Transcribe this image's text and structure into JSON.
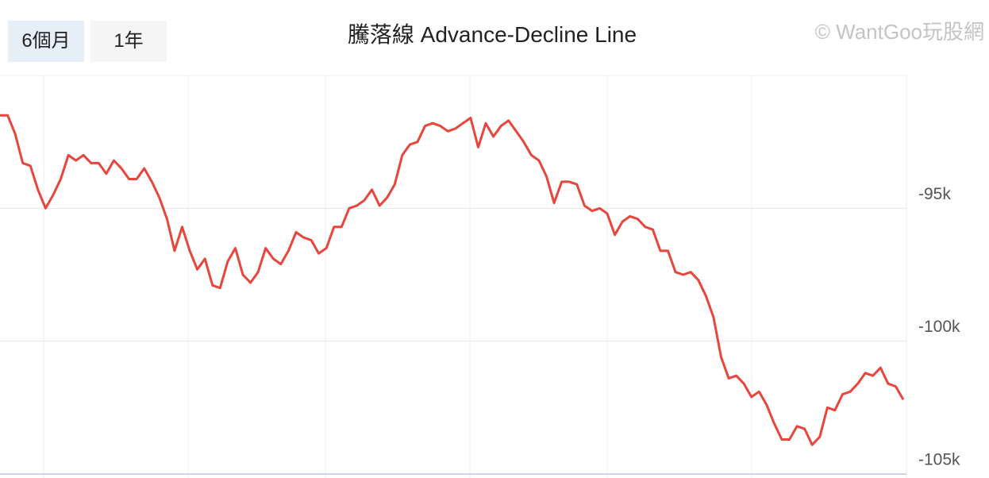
{
  "buttons": [
    "6個月",
    "1年"
  ],
  "watermark": "© WantGoo玩股網",
  "chart_data": {
    "type": "line",
    "title": "騰落線 Advance-Decline Line",
    "color": "#e8453c",
    "grid": true,
    "ylim": [
      -105000,
      -90000
    ],
    "yticks": [
      {
        "value": -105000,
        "label": "-105k"
      },
      {
        "value": -100000,
        "label": "-100k"
      },
      {
        "value": -95000,
        "label": "-95k"
      }
    ],
    "values": [
      -91500,
      -91500,
      -92200,
      -93300,
      -93400,
      -94300,
      -95000,
      -94500,
      -93900,
      -93000,
      -93200,
      -93000,
      -93300,
      -93300,
      -93700,
      -93200,
      -93500,
      -93900,
      -93900,
      -93500,
      -94000,
      -94600,
      -95400,
      -96600,
      -95700,
      -96600,
      -97300,
      -96900,
      -97900,
      -98000,
      -97000,
      -96500,
      -97500,
      -97800,
      -97400,
      -96500,
      -96900,
      -97100,
      -96600,
      -95900,
      -96100,
      -96200,
      -96700,
      -96500,
      -95700,
      -95700,
      -95000,
      -94900,
      -94700,
      -94300,
      -94900,
      -94600,
      -94100,
      -93000,
      -92600,
      -92500,
      -91900,
      -91800,
      -91900,
      -92100,
      -92000,
      -91800,
      -91600,
      -92700,
      -91800,
      -92300,
      -91900,
      -91700,
      -92100,
      -92500,
      -93000,
      -93200,
      -93800,
      -94800,
      -94000,
      -94000,
      -94100,
      -94900,
      -95100,
      -95000,
      -95200,
      -96000,
      -95500,
      -95300,
      -95400,
      -95700,
      -95800,
      -96600,
      -96600,
      -97400,
      -97500,
      -97400,
      -97700,
      -98300,
      -99100,
      -100600,
      -101400,
      -101300,
      -101600,
      -102100,
      -101900,
      -102400,
      -103100,
      -103700,
      -103700,
      -103200,
      -103300,
      -103900,
      -103600,
      -102500,
      -102600,
      -102000,
      -101900,
      -101600,
      -101200,
      -101300,
      -101000,
      -101600,
      -101700,
      -102200
    ]
  }
}
